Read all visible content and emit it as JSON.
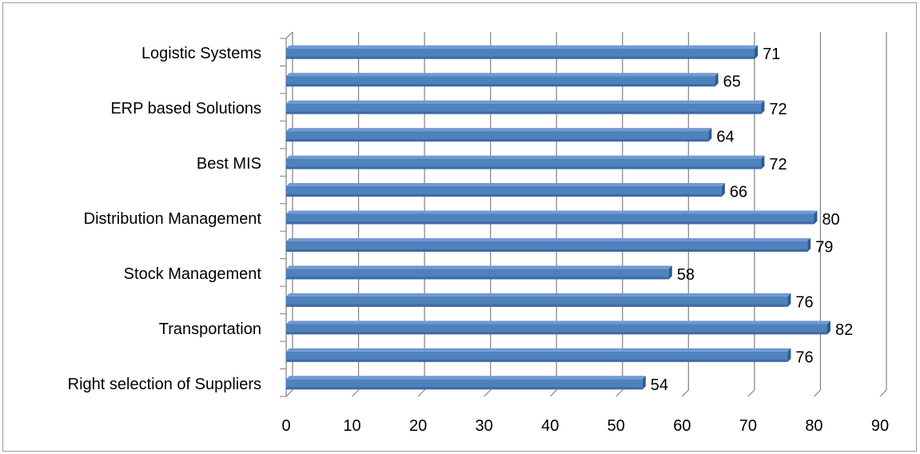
{
  "chart_data": {
    "type": "bar",
    "orientation": "horizontal",
    "style": "3d-clustered",
    "xlim": [
      0,
      90
    ],
    "x_ticks": [
      "0",
      "10",
      "20",
      "30",
      "40",
      "50",
      "60",
      "70",
      "80",
      "90"
    ],
    "grid": true,
    "legend": "none",
    "category_labels": [
      "Logistic Systems",
      "ERP based Solutions",
      "Best MIS",
      "Distribution Management",
      "Stock Management",
      "Transportation",
      "Right selection of Suppliers"
    ],
    "bar_values": [
      71,
      65,
      72,
      64,
      72,
      66,
      80,
      79,
      58,
      76,
      82,
      76,
      54
    ],
    "bar_labels": [
      "71",
      "65",
      "72",
      "64",
      "72",
      "66",
      "80",
      "79",
      "58",
      "76",
      "82",
      "76",
      "54"
    ],
    "colors": {
      "bar": "#4f81bd",
      "bar_top": "#6f9bd1",
      "bar_side": "#2f5a8f",
      "grid": "#7f7f7f",
      "axis": "#7f7f7f",
      "frame": "#9e9e9e"
    }
  }
}
